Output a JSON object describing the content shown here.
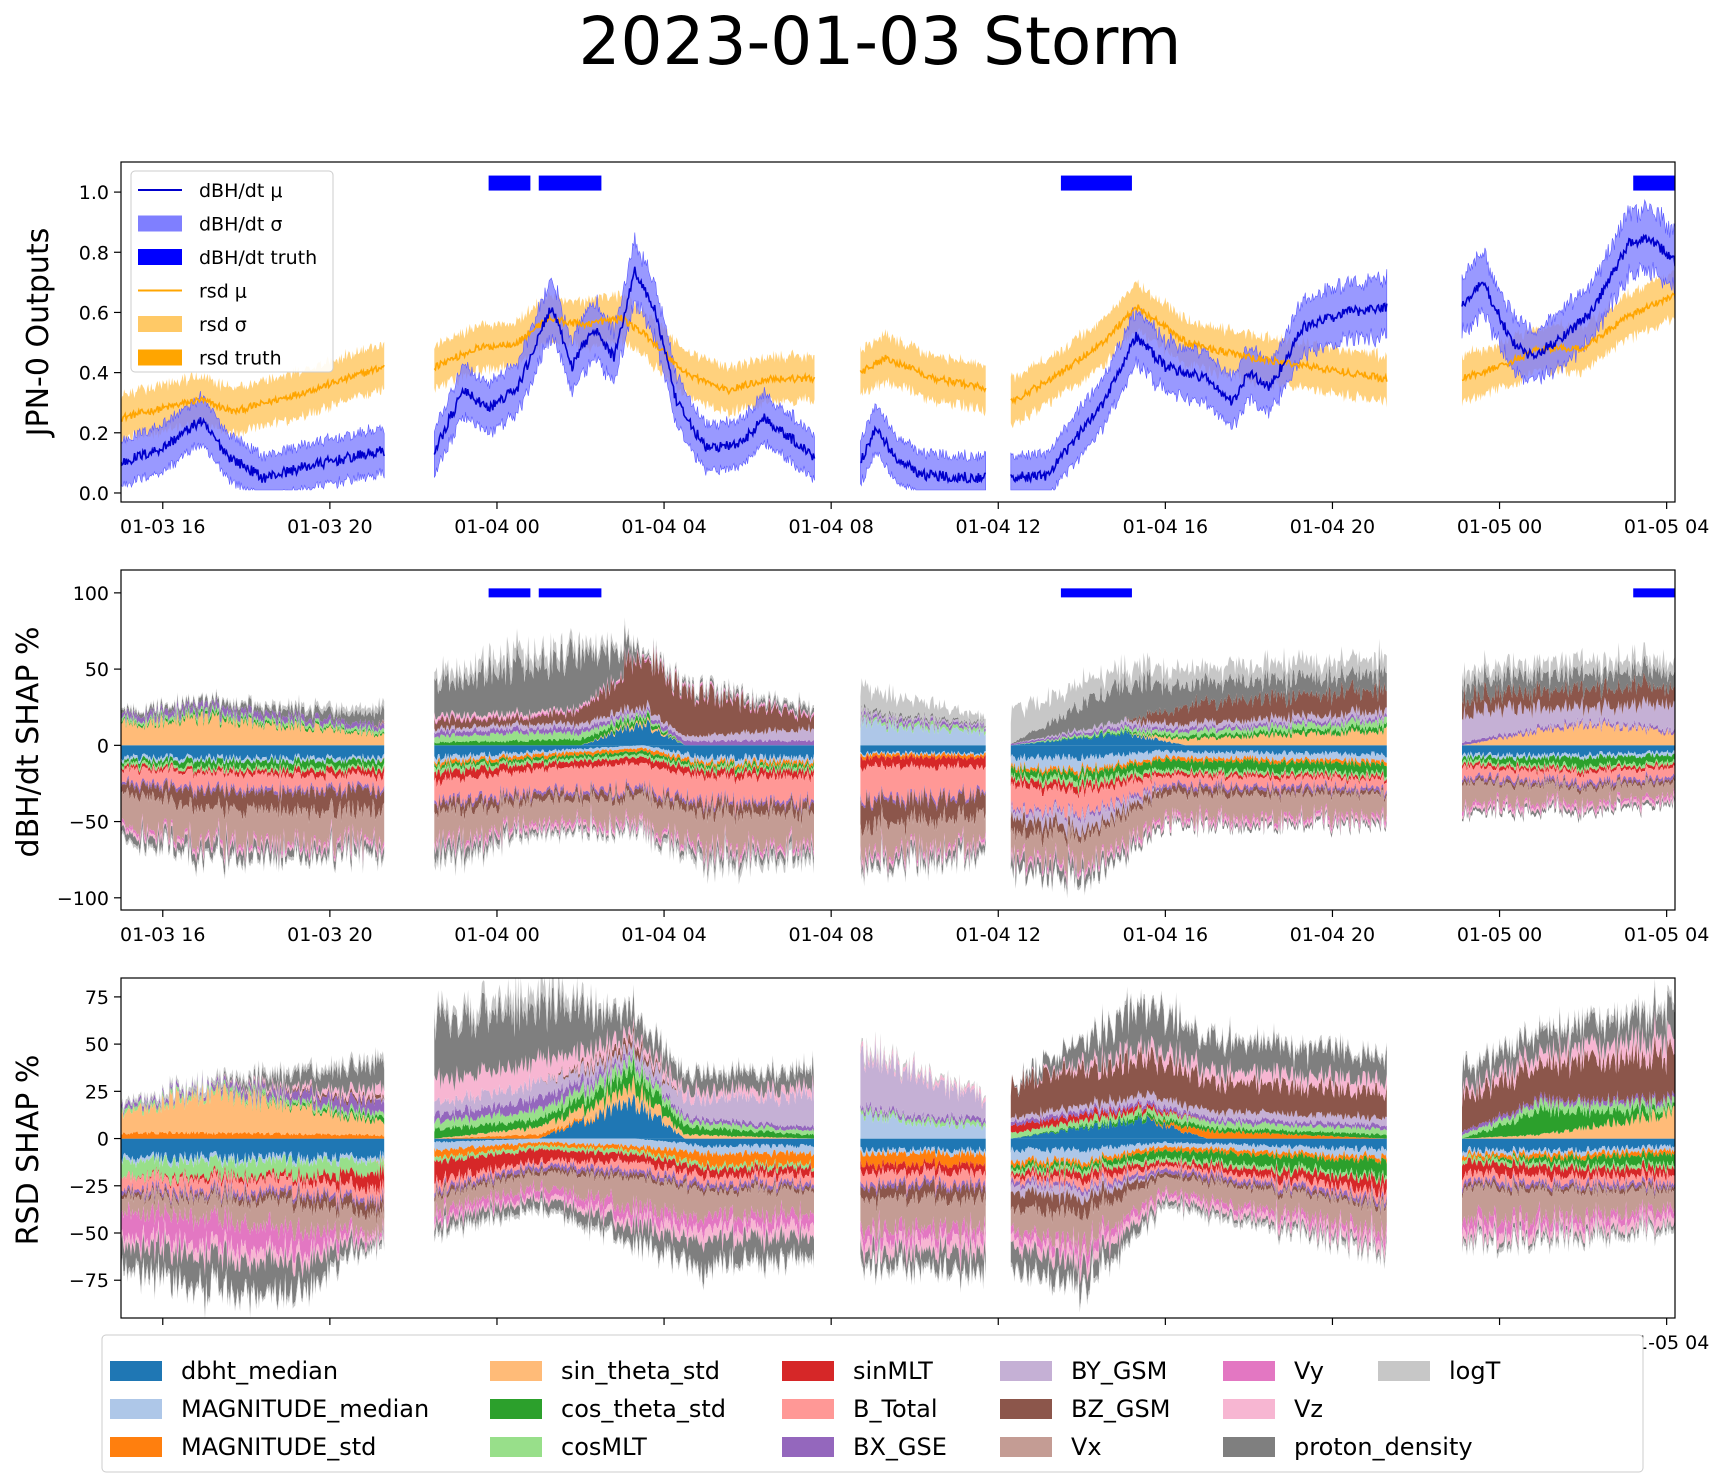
{
  "title": "2023-01-03 Storm",
  "colors": {
    "mu_blue": "#0000cc",
    "sigma_blue": "#7f7fff",
    "truth_blue": "#0000ff",
    "mu_orange": "#ffa500",
    "sigma_orange": "#ffc966"
  },
  "chart_data": [
    {
      "type": "line",
      "id": "outputs",
      "ylabel": "JPN-0 Outputs",
      "ylim": [
        -0.03,
        1.1
      ],
      "yticks": [
        0.0,
        0.2,
        0.4,
        0.6,
        0.8,
        1.0
      ],
      "ytick_labels": [
        "0.0",
        "0.2",
        "0.4",
        "0.6",
        "0.8",
        "1.0"
      ],
      "grid": false,
      "legend_position": "upper-left",
      "legend": [
        {
          "label": "dBH/dt μ",
          "kind": "line",
          "color": "#0000cc"
        },
        {
          "label": "dBH/dt σ",
          "kind": "patch",
          "color": "#7f7fff"
        },
        {
          "label": "dBH/dt truth",
          "kind": "patch",
          "color": "#0000ff"
        },
        {
          "label": "rsd μ",
          "kind": "line",
          "color": "#ffa500"
        },
        {
          "label": "rsd σ",
          "kind": "patch",
          "color": "#ffc966"
        },
        {
          "label": "rsd truth",
          "kind": "patch",
          "color": "#ffa500"
        }
      ],
      "series": [
        {
          "name": "dBH/dt μ",
          "x_hours": [
            15.2,
            15.8,
            16.4,
            16.9,
            17.4,
            18.0,
            18.6,
            19.2,
            19.8,
            20.4,
            21.0,
            21.9
          ],
          "values": [
            0.1,
            0.12,
            0.18,
            0.24,
            0.17,
            0.1,
            0.06,
            0.08,
            0.11,
            0.12,
            0.14,
            0.13
          ]
        },
        {
          "name": "rsd μ",
          "x_hours": [
            15.2,
            15.8,
            16.4,
            16.9,
            17.4,
            18.0,
            18.6,
            19.2,
            19.8,
            20.4,
            21.0,
            21.9
          ],
          "values": [
            0.25,
            0.26,
            0.28,
            0.31,
            0.29,
            0.3,
            0.32,
            0.33,
            0.35,
            0.37,
            0.38,
            0.42
          ]
        }
      ]
    },
    {
      "type": "area",
      "id": "dbh_shap",
      "ylabel": "dBH/dt SHAP %",
      "ylim": [
        -108,
        115
      ],
      "yticks": [
        -100,
        -50,
        0,
        50,
        100
      ],
      "ytick_labels": [
        "−100",
        "−50",
        "0",
        "50",
        "100"
      ],
      "grid": false
    },
    {
      "type": "area",
      "id": "rsd_shap",
      "ylabel": "RSD SHAP %",
      "ylim": [
        -95,
        85
      ],
      "yticks": [
        -75,
        -50,
        -25,
        0,
        25,
        50,
        75
      ],
      "ytick_labels": [
        "−75",
        "−50",
        "−25",
        "0",
        "25",
        "50",
        "75"
      ],
      "grid": false
    }
  ],
  "x_axis": {
    "xlim_hours": [
      15.0,
      52.2
    ],
    "ticks_hours": [
      16,
      20,
      24,
      28,
      32,
      36,
      40,
      44,
      48,
      52
    ],
    "tick_labels": [
      "01-03 16",
      "01-03 20",
      "01-04 00",
      "01-04 04",
      "01-04 08",
      "01-04 12",
      "01-04 16",
      "01-04 20",
      "01-05 00",
      "01-05 04"
    ],
    "data_segments_hours": [
      [
        15.0,
        21.3
      ],
      [
        22.5,
        31.6
      ],
      [
        32.7,
        35.7
      ],
      [
        36.3,
        45.3
      ],
      [
        47.1,
        52.2
      ]
    ],
    "truth_intervals_hours": [
      [
        23.8,
        24.8
      ],
      [
        25.0,
        26.5
      ],
      [
        37.5,
        39.2
      ],
      [
        51.2,
        52.2
      ]
    ]
  },
  "features": [
    {
      "name": "dbht_median",
      "color": "#1f77b4"
    },
    {
      "name": "MAGNITUDE_median",
      "color": "#aec7e8"
    },
    {
      "name": "MAGNITUDE_std",
      "color": "#ff7f0e"
    },
    {
      "name": "sin_theta_std",
      "color": "#ffbb78"
    },
    {
      "name": "cos_theta_std",
      "color": "#2ca02c"
    },
    {
      "name": "cosMLT",
      "color": "#98df8a"
    },
    {
      "name": "sinMLT",
      "color": "#d62728"
    },
    {
      "name": "B_Total",
      "color": "#ff9896"
    },
    {
      "name": "BX_GSE",
      "color": "#9467bd"
    },
    {
      "name": "BY_GSM",
      "color": "#c5b0d5"
    },
    {
      "name": "BZ_GSM",
      "color": "#8c564b"
    },
    {
      "name": "Vx",
      "color": "#c49c94"
    },
    {
      "name": "Vy",
      "color": "#e377c2"
    },
    {
      "name": "Vz",
      "color": "#f7b6d2"
    },
    {
      "name": "proton_density",
      "color": "#7f7f7f"
    },
    {
      "name": "logT",
      "color": "#c7c7c7"
    }
  ]
}
